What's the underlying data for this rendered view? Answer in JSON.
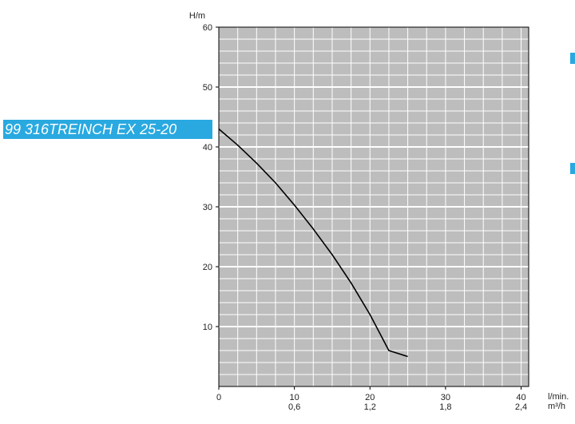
{
  "model_label": "99 316TREINCH EX 25-20",
  "colors": {
    "accent": "#29a9e0",
    "plot_bg": "#bdbdbd",
    "grid": "#ffffff",
    "curve": "#000000"
  },
  "chart_data": {
    "type": "line",
    "title": "",
    "ylabel": "H/m",
    "xlabel_primary": "l/min.",
    "xlabel_secondary": "m³/h",
    "xlim": [
      0,
      41
    ],
    "ylim": [
      0,
      60
    ],
    "grid": true,
    "x_ticks": [
      {
        "value": 0,
        "label": "0",
        "sub": ""
      },
      {
        "value": 10,
        "label": "10",
        "sub": "0,6"
      },
      {
        "value": 20,
        "label": "20",
        "sub": "1,2"
      },
      {
        "value": 30,
        "label": "30",
        "sub": "1,8"
      },
      {
        "value": 40,
        "label": "40",
        "sub": "2,4"
      }
    ],
    "y_ticks": [
      10,
      20,
      30,
      40,
      50,
      60
    ],
    "series": [
      {
        "x": [
          0,
          2.5,
          5,
          7.5,
          10,
          12.5,
          15,
          17.5,
          20,
          22.5,
          25
        ],
        "y": [
          43,
          40.3,
          37.3,
          34.0,
          30.3,
          26.3,
          22.0,
          17.3,
          12.0,
          6.0,
          5
        ]
      }
    ]
  }
}
